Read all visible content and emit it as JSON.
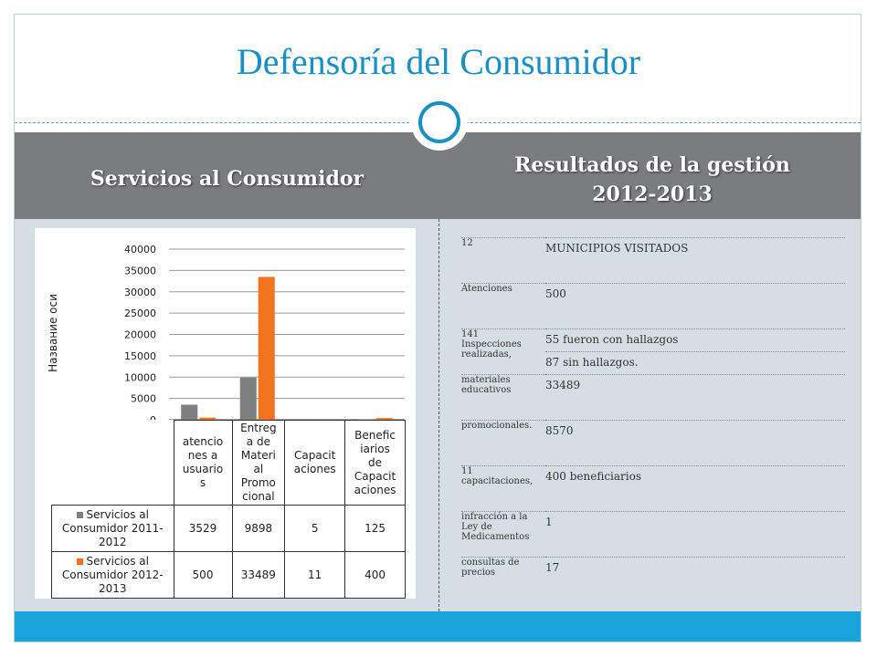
{
  "slide": {
    "title": "Defensoría del Consumidor",
    "left_heading": "Servicios al Consumidor",
    "right_heading_line1": "Resultados de la gestión",
    "right_heading_line2": "2012-2013"
  },
  "colors": {
    "series1": "#7f7f7f",
    "series2": "#f47320",
    "title": "#1a8fc1",
    "band": "#7b7c80",
    "footer": "#1ba3dc"
  },
  "chart_data": {
    "type": "bar",
    "ylabel": "Название оси",
    "ylim": [
      0,
      40000
    ],
    "yticks": [
      "0",
      "5000",
      "10000",
      "15000",
      "20000",
      "25000",
      "30000",
      "35000",
      "40000"
    ],
    "categories": [
      [
        "atencio",
        "nes a",
        "usuario",
        "s"
      ],
      [
        "Entreg",
        "a de",
        "Materi",
        "al",
        "Promo",
        "cional"
      ],
      [
        "Capacit",
        "aciones"
      ],
      [
        "Benefic",
        "iarios",
        "de",
        "Capacit",
        "aciones"
      ]
    ],
    "series": [
      {
        "name": [
          "Servicios al",
          "Consumidor 2011-",
          "2012"
        ],
        "values": [
          3529,
          9898,
          5,
          125
        ]
      },
      {
        "name": [
          "Servicios al",
          "Consumidor 2012-",
          "2013"
        ],
        "values": [
          500,
          33489,
          11,
          400
        ]
      }
    ],
    "legend": "bottom-table"
  },
  "results": [
    {
      "key": [
        "12"
      ],
      "values": [
        "MUNICIPIOS VISITADOS"
      ]
    },
    {
      "key": [
        "Atenciones"
      ],
      "values": [
        "500"
      ]
    },
    {
      "key": [
        "141",
        "Inspecciones",
        "realizadas,"
      ],
      "values": [
        "55 fueron con hallazgos",
        "87 sin hallazgos."
      ]
    },
    {
      "key": [
        "materiales",
        "educativos"
      ],
      "values": [
        "33489"
      ]
    },
    {
      "key": [
        "promocionales."
      ],
      "values": [
        "8570"
      ]
    },
    {
      "key": [
        "11",
        "capacitaciones,"
      ],
      "values": [
        "400 beneficiarios"
      ]
    },
    {
      "key": [
        "infracción a la",
        "Ley de",
        "Medicamentos"
      ],
      "values": [
        "1"
      ]
    },
    {
      "key": [
        "consultas de",
        "precios"
      ],
      "values": [
        "17"
      ]
    }
  ]
}
